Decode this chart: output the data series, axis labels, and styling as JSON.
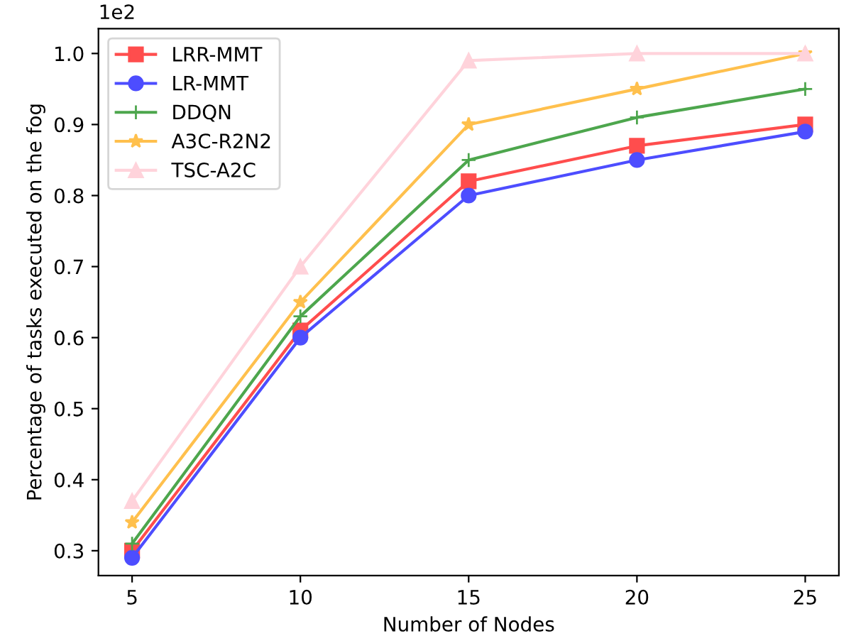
{
  "chart_data": {
    "type": "line",
    "xlabel": "Number of Nodes",
    "ylabel": "Percentage of tasks executed on the fog",
    "x": [
      5,
      10,
      15,
      20,
      25
    ],
    "series": [
      {
        "name": "LRR-MMT",
        "color": "#ff4d4d",
        "marker": "square",
        "values": [
          0.3,
          0.61,
          0.82,
          0.87,
          0.9
        ]
      },
      {
        "name": "LR-MMT",
        "color": "#4d4dff",
        "marker": "circle",
        "values": [
          0.29,
          0.6,
          0.8,
          0.85,
          0.89
        ]
      },
      {
        "name": "DDQN",
        "color": "#4da64d",
        "marker": "cross",
        "values": [
          0.31,
          0.63,
          0.85,
          0.91,
          0.95
        ]
      },
      {
        "name": "A3C-R2N2",
        "color": "#ffc04d",
        "marker": "star",
        "values": [
          0.34,
          0.65,
          0.9,
          0.95,
          1.0
        ]
      },
      {
        "name": "TSC-A2C",
        "color": "#ffd3db",
        "marker": "triangle",
        "values": [
          0.37,
          0.7,
          0.99,
          1.0,
          1.0
        ]
      }
    ],
    "xlim": [
      4,
      26
    ],
    "xticks": [
      5,
      10,
      15,
      20,
      25
    ],
    "ylim": [
      0.265,
      1.035
    ],
    "yticks": [
      {
        "value": 0.3,
        "label": "0.3"
      },
      {
        "value": 0.4,
        "label": "0.4"
      },
      {
        "value": 0.5,
        "label": "0.5"
      },
      {
        "value": 0.6,
        "label": "0.6"
      },
      {
        "value": 0.7,
        "label": "0.7"
      },
      {
        "value": 0.8,
        "label": "0.8"
      },
      {
        "value": 0.9,
        "label": "0.9"
      },
      {
        "value": 1.0,
        "label": "1.0"
      }
    ],
    "annotations": [
      "1e2"
    ],
    "legend": "top left",
    "grid": false,
    "line_style": "solid"
  }
}
